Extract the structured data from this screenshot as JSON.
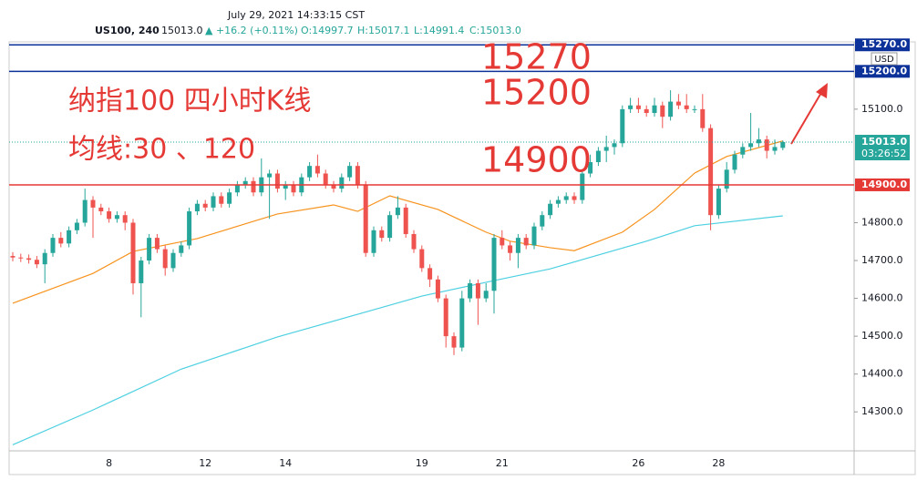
{
  "header": {
    "datetime": "July 29, 2021 14:33:15 CST",
    "symbol": "US100, 240",
    "last": "15013.0",
    "change": "▲ +16.2 (+0.11%)",
    "o": "O:14997.7",
    "h": "H:15017.1",
    "l": "L:14991.4",
    "c": "C:15013.0"
  },
  "chart_data": {
    "type": "candlestick",
    "up_color": "#26a69a",
    "down_color": "#ef5350",
    "categories": [
      null,
      null,
      null,
      null,
      null,
      null,
      null,
      null,
      null,
      null,
      null,
      null,
      "8",
      null,
      null,
      null,
      null,
      null,
      null,
      null,
      null,
      null,
      null,
      null,
      "12",
      null,
      null,
      null,
      null,
      null,
      null,
      null,
      null,
      null,
      "14",
      null,
      null,
      null,
      null,
      null,
      null,
      null,
      null,
      null,
      null,
      null,
      null,
      null,
      null,
      null,
      null,
      "19",
      null,
      null,
      null,
      null,
      null,
      null,
      null,
      null,
      null,
      "21",
      null,
      null,
      null,
      null,
      null,
      null,
      null,
      null,
      null,
      null,
      null,
      null,
      null,
      null,
      null,
      null,
      "26",
      null,
      null,
      null,
      null,
      null,
      null,
      null,
      null,
      null,
      "28",
      null,
      null,
      null,
      null,
      null,
      null,
      null,
      null
    ],
    "open": [
      14712,
      14708,
      14706,
      14702,
      14690,
      14720,
      14760,
      14745,
      14780,
      14800,
      14860,
      14840,
      14830,
      14810,
      14820,
      14800,
      14640,
      14700,
      14760,
      14730,
      14680,
      14720,
      14740,
      14830,
      14850,
      14840,
      14870,
      14850,
      14880,
      14900,
      14910,
      14880,
      14920,
      14930,
      14890,
      14900,
      14880,
      14920,
      14950,
      14930,
      14900,
      14890,
      14920,
      14950,
      14900,
      14720,
      14780,
      14760,
      14820,
      14840,
      14770,
      14730,
      14680,
      14650,
      14600,
      14500,
      14470,
      14600,
      14640,
      14600,
      14620,
      14760,
      14740,
      14720,
      14760,
      14740,
      14790,
      14820,
      14850,
      14860,
      14870,
      14860,
      14930,
      14960,
      14990,
      15000,
      15010,
      15100,
      15110,
      15100,
      15090,
      15110,
      15080,
      15120,
      15110,
      15100,
      15100,
      15050,
      14820,
      14890,
      14940,
      14980,
      15000,
      15010,
      15020,
      14990,
      14997.7
    ],
    "high": [
      14722,
      14718,
      14716,
      14712,
      14730,
      14770,
      14775,
      14790,
      14810,
      14890,
      14870,
      14850,
      14840,
      14830,
      14830,
      14810,
      14710,
      14770,
      14770,
      14740,
      14730,
      14750,
      14840,
      14860,
      14860,
      14880,
      14880,
      14890,
      14910,
      14920,
      14920,
      14970,
      14940,
      14940,
      14910,
      14910,
      14930,
      14960,
      14980,
      14940,
      14910,
      14930,
      14960,
      14960,
      14910,
      14790,
      14790,
      14830,
      14870,
      14850,
      14780,
      14740,
      14690,
      14660,
      14610,
      14510,
      14620,
      14650,
      14650,
      14640,
      14770,
      14780,
      14750,
      14770,
      14770,
      14800,
      14830,
      14860,
      14870,
      14880,
      14880,
      14940,
      14980,
      15000,
      15030,
      15020,
      15110,
      15130,
      15130,
      15110,
      15130,
      15120,
      15150,
      15140,
      15140,
      15110,
      15140,
      15060,
      14900,
      14960,
      14990,
      15010,
      15090,
      15050,
      15030,
      15020,
      15017.1
    ],
    "low": [
      14698,
      14696,
      14692,
      14680,
      14640,
      14710,
      14735,
      14735,
      14770,
      14790,
      14760,
      14820,
      14800,
      14800,
      14780,
      14610,
      14550,
      14690,
      14720,
      14660,
      14670,
      14710,
      14730,
      14820,
      14830,
      14830,
      14840,
      14840,
      14870,
      14890,
      14870,
      14870,
      14810,
      14880,
      14860,
      14870,
      14870,
      14910,
      14920,
      14890,
      14880,
      14880,
      14910,
      14890,
      14710,
      14710,
      14750,
      14750,
      14810,
      14760,
      14720,
      14670,
      14630,
      14590,
      14470,
      14450,
      14460,
      14590,
      14530,
      14590,
      14560,
      14730,
      14700,
      14680,
      14730,
      14730,
      14780,
      14810,
      14840,
      14850,
      14850,
      14850,
      14920,
      14950,
      14960,
      14980,
      15000,
      15090,
      15090,
      15080,
      15080,
      15050,
      15070,
      15100,
      15090,
      15090,
      15040,
      14780,
      14810,
      14880,
      14930,
      14970,
      14990,
      15000,
      14970,
      14980,
      14991.4
    ],
    "close": [
      14708,
      14706,
      14702,
      14690,
      14720,
      14760,
      14745,
      14780,
      14800,
      14860,
      14840,
      14830,
      14810,
      14820,
      14800,
      14640,
      14700,
      14760,
      14730,
      14680,
      14720,
      14740,
      14830,
      14850,
      14840,
      14870,
      14850,
      14880,
      14900,
      14910,
      14880,
      14920,
      14930,
      14890,
      14900,
      14880,
      14920,
      14950,
      14930,
      14900,
      14890,
      14920,
      14950,
      14900,
      14720,
      14780,
      14760,
      14820,
      14840,
      14770,
      14730,
      14680,
      14650,
      14600,
      14500,
      14470,
      14600,
      14640,
      14600,
      14620,
      14760,
      14740,
      14720,
      14760,
      14740,
      14790,
      14820,
      14850,
      14860,
      14870,
      14860,
      14930,
      14960,
      14990,
      15000,
      15010,
      15100,
      15110,
      15100,
      15090,
      15110,
      15080,
      15120,
      15110,
      15100,
      15100,
      15050,
      14820,
      14890,
      14940,
      14980,
      15000,
      15010,
      15020,
      14990,
      15000,
      15013
    ],
    "lines": [
      {
        "color": "#f7931e",
        "x": [
          0,
          10,
          15,
          23,
          33,
          40,
          43,
          47,
          53,
          59,
          62,
          67,
          70,
          76,
          80,
          85,
          89,
          96
        ],
        "values": [
          14587,
          14666,
          14724,
          14758,
          14823,
          14847,
          14830,
          14871,
          14835,
          14775,
          14751,
          14734,
          14726,
          14775,
          14835,
          14931,
          14975,
          15016
        ]
      },
      {
        "color": "#4dd0e1",
        "x": [
          0,
          10,
          21,
          33,
          43,
          51,
          60,
          67,
          79,
          85,
          96
        ],
        "values": [
          14213,
          14305,
          14413,
          14498,
          14558,
          14606,
          14647,
          14678,
          14751,
          14792,
          14818
        ]
      }
    ],
    "levels": [
      {
        "value": 15270,
        "label": "15270.0",
        "color": "#0c3299"
      },
      {
        "value": 15200,
        "label": "15200.0",
        "color": "#0c3299"
      },
      {
        "value": 14900,
        "label": "14900.0",
        "color": "#e53935"
      }
    ],
    "price": {
      "value": 15013,
      "label": "15013.0",
      "countdown": "03:26:52",
      "color": "#26a69a"
    },
    "currency": "USD",
    "ylim": [
      14197,
      15273
    ],
    "yticks": [
      {
        "value": 14300,
        "label": "14300.0"
      },
      {
        "value": 14400,
        "label": "14400.0"
      },
      {
        "value": 14500,
        "label": "14500.0"
      },
      {
        "value": 14600,
        "label": "14600.0"
      },
      {
        "value": 14700,
        "label": "14700.0"
      },
      {
        "value": 14800,
        "label": "14800.0"
      },
      {
        "value": 15100,
        "label": "15100.0"
      }
    ],
    "annotations": [
      "纳指100 四小时K线",
      "均线:30 、120",
      "15270",
      "15200",
      "14900"
    ]
  }
}
